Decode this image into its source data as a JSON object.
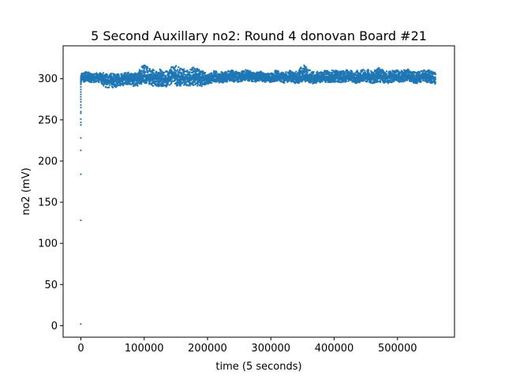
{
  "chart_data": {
    "type": "scatter",
    "title": "5 Second Auxillary no2: Round 4 donovan Board #21",
    "xlabel": "time (5 seconds)",
    "ylabel": "no2 (mV)",
    "xlim": [
      -28000,
      590000
    ],
    "ylim": [
      -14,
      340
    ],
    "xticks": [
      0,
      100000,
      200000,
      300000,
      400000,
      500000
    ],
    "yticks": [
      0,
      50,
      100,
      150,
      200,
      250,
      300
    ],
    "grid": false,
    "legend": "none",
    "marker_color": "#1f77b4",
    "startup_points": [
      [
        0,
        2
      ],
      [
        0,
        128
      ],
      [
        0,
        184
      ],
      [
        0,
        213
      ],
      [
        0,
        228
      ],
      [
        0,
        244
      ],
      [
        0,
        247
      ],
      [
        0,
        251
      ],
      [
        0,
        258
      ],
      [
        0,
        260
      ],
      [
        0,
        265
      ],
      [
        0,
        268
      ],
      [
        0,
        272
      ],
      [
        0,
        275
      ],
      [
        0,
        278
      ],
      [
        0,
        281
      ],
      [
        0,
        284
      ],
      [
        0,
        287
      ],
      [
        0,
        290
      ],
      [
        0,
        293
      ],
      [
        0,
        296
      ],
      [
        0,
        298
      ],
      [
        0,
        300
      ],
      [
        0,
        302
      ]
    ],
    "series": [
      {
        "x": [
          0,
          10000,
          20000,
          30000,
          40000,
          50000,
          60000,
          70000,
          80000,
          90000,
          100000,
          110000,
          120000,
          130000,
          140000,
          150000,
          160000,
          170000,
          180000,
          190000,
          200000,
          210000,
          220000,
          230000,
          240000,
          250000,
          260000,
          270000,
          280000,
          290000,
          300000,
          310000,
          320000,
          330000,
          340000,
          350000,
          360000,
          370000,
          380000,
          390000,
          400000,
          410000,
          420000,
          430000,
          440000,
          450000,
          460000,
          470000,
          480000,
          490000,
          500000,
          510000,
          520000,
          530000,
          540000,
          550000,
          560000
        ],
        "y_mean": [
          300,
          301,
          301,
          300,
          299,
          298,
          299,
          300,
          299,
          300,
          303,
          301,
          300,
          300,
          301,
          303,
          302,
          300,
          303,
          300,
          300,
          302,
          301,
          302,
          302,
          303,
          303,
          302,
          302,
          301,
          301,
          302,
          301,
          302,
          301,
          303,
          302,
          301,
          301,
          302,
          301,
          302,
          302,
          301,
          303,
          302,
          301,
          303,
          302,
          302,
          302,
          303,
          302,
          301,
          302,
          302,
          301
        ],
        "y_low": [
          294,
          296,
          296,
          293,
          290,
          288,
          291,
          293,
          291,
          292,
          293,
          292,
          290,
          291,
          292,
          292,
          292,
          290,
          293,
          290,
          294,
          296,
          295,
          297,
          296,
          297,
          297,
          297,
          297,
          296,
          296,
          296,
          296,
          296,
          295,
          296,
          296,
          295,
          295,
          296,
          295,
          296,
          296,
          295,
          296,
          296,
          295,
          295,
          296,
          295,
          296,
          297,
          296,
          295,
          296,
          296,
          293
        ],
        "y_high": [
          306,
          308,
          307,
          306,
          307,
          306,
          306,
          307,
          306,
          308,
          318,
          312,
          311,
          310,
          312,
          316,
          313,
          311,
          315,
          309,
          307,
          309,
          308,
          309,
          309,
          309,
          310,
          309,
          308,
          307,
          307,
          310,
          308,
          309,
          309,
          318,
          311,
          309,
          309,
          311,
          309,
          310,
          310,
          309,
          312,
          311,
          310,
          312,
          310,
          309,
          310,
          311,
          310,
          309,
          310,
          311,
          309
        ]
      }
    ]
  }
}
